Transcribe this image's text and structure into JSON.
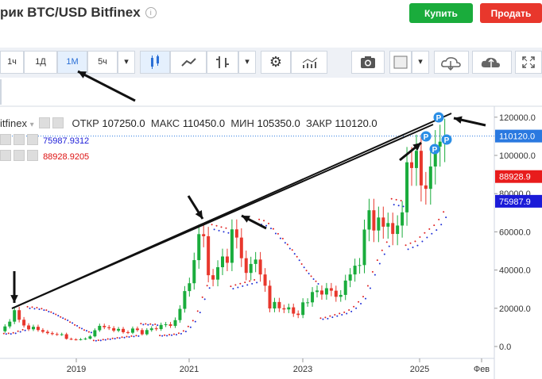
{
  "header": {
    "title": "рик BTC/USD Bitfinex",
    "info_icon": "info-icon",
    "buy_label": "Купить",
    "sell_label": "Продать"
  },
  "toolbar": {
    "intervals": [
      "1ч",
      "1Д",
      "1М",
      "5ч"
    ],
    "active_interval": "1М",
    "icons": [
      "chevron-down-icon",
      "candles-icon",
      "area-chart-icon",
      "bars-icon",
      "chevron-down-icon",
      "gear-icon",
      "indicators-icon",
      "camera-icon",
      "color-square-icon",
      "chevron-down-icon",
      "cloud-download-icon",
      "cloud-upload-icon",
      "fullscreen-icon"
    ]
  },
  "legend": {
    "symbol": "itfinex",
    "open_label": "ОТКР",
    "open_value": "107250.0",
    "high_label": "МАКС",
    "high_value": "110450.0",
    "low_label": "МИН",
    "low_value": "105350.0",
    "close_label": "ЗАКР",
    "close_value": "110120.0",
    "indicator1_value": "75987.9312",
    "indicator2_value": "88928.9205"
  },
  "colors": {
    "up": "#1aac3c",
    "down": "#e8372c",
    "sar_blue": "#1f2fd6",
    "sar_red": "#e02020",
    "price_tag": "#2a79e0",
    "low_tag": "#1b1bd8",
    "high_tag": "#e81c1c"
  },
  "chart_data": {
    "type": "candlestick",
    "x_tick_labels": [
      "2019",
      "2021",
      "2023",
      "2025",
      "Фев"
    ],
    "y_tick_labels": [
      "0.0",
      "20000.0",
      "40000.0",
      "60000.0",
      "80000.0",
      "100000.0",
      "120000.0"
    ],
    "ylim": [
      -8000,
      130000
    ],
    "price_tags": {
      "last": "110120.0",
      "indicator_red": "88928.9",
      "indicator_blue": "75987.9"
    },
    "markers": [
      "P",
      "P",
      "P",
      "P"
    ],
    "candles": [
      {
        "o": 8000,
        "c": 10500
      },
      {
        "o": 10500,
        "c": 13000
      },
      {
        "o": 13000,
        "c": 19000
      },
      {
        "o": 19000,
        "c": 14000
      },
      {
        "o": 14000,
        "c": 11000
      },
      {
        "o": 11000,
        "c": 9000
      },
      {
        "o": 9000,
        "c": 10300
      },
      {
        "o": 10300,
        "c": 8600
      },
      {
        "o": 8600,
        "c": 7700
      },
      {
        "o": 7700,
        "c": 7000
      },
      {
        "o": 7000,
        "c": 6500
      },
      {
        "o": 6500,
        "c": 6200
      },
      {
        "o": 6200,
        "c": 6400
      },
      {
        "o": 6400,
        "c": 4000
      },
      {
        "o": 4000,
        "c": 3700
      },
      {
        "o": 3700,
        "c": 3500
      },
      {
        "o": 3500,
        "c": 3800
      },
      {
        "o": 3800,
        "c": 4100
      },
      {
        "o": 4100,
        "c": 5300
      },
      {
        "o": 5300,
        "c": 8500
      },
      {
        "o": 8500,
        "c": 10800
      },
      {
        "o": 10800,
        "c": 10100
      },
      {
        "o": 10100,
        "c": 9600
      },
      {
        "o": 9600,
        "c": 8300
      },
      {
        "o": 8300,
        "c": 9200
      },
      {
        "o": 9200,
        "c": 7500
      },
      {
        "o": 7500,
        "c": 7200
      },
      {
        "o": 7200,
        "c": 9400
      },
      {
        "o": 9400,
        "c": 8600
      },
      {
        "o": 8600,
        "c": 6400
      },
      {
        "o": 6400,
        "c": 8600
      },
      {
        "o": 8600,
        "c": 9500
      },
      {
        "o": 9500,
        "c": 9100
      },
      {
        "o": 9100,
        "c": 11300
      },
      {
        "o": 11300,
        "c": 11600
      },
      {
        "o": 11600,
        "c": 10800
      },
      {
        "o": 10800,
        "c": 13800
      },
      {
        "o": 13800,
        "c": 19700
      },
      {
        "o": 19700,
        "c": 29000
      },
      {
        "o": 29000,
        "c": 33100
      },
      {
        "o": 33100,
        "c": 45200
      },
      {
        "o": 45200,
        "c": 58800
      },
      {
        "o": 58800,
        "c": 57700
      },
      {
        "o": 57700,
        "c": 37300
      },
      {
        "o": 37300,
        "c": 35000
      },
      {
        "o": 35000,
        "c": 41500
      },
      {
        "o": 41500,
        "c": 47100
      },
      {
        "o": 47100,
        "c": 43800
      },
      {
        "o": 43800,
        "c": 61300
      },
      {
        "o": 61300,
        "c": 57000
      },
      {
        "o": 57000,
        "c": 46200
      },
      {
        "o": 46200,
        "c": 38500
      },
      {
        "o": 38500,
        "c": 43200
      },
      {
        "o": 43200,
        "c": 45500
      },
      {
        "o": 45500,
        "c": 37700
      },
      {
        "o": 37700,
        "c": 31800
      },
      {
        "o": 31800,
        "c": 19900
      },
      {
        "o": 19900,
        "c": 23300
      },
      {
        "o": 23300,
        "c": 20000
      },
      {
        "o": 20000,
        "c": 19400
      },
      {
        "o": 19400,
        "c": 20500
      },
      {
        "o": 20500,
        "c": 17200
      },
      {
        "o": 17200,
        "c": 16500
      },
      {
        "o": 16500,
        "c": 23100
      },
      {
        "o": 23100,
        "c": 23100
      },
      {
        "o": 23100,
        "c": 28500
      },
      {
        "o": 28500,
        "c": 29300
      },
      {
        "o": 29300,
        "c": 27200
      },
      {
        "o": 27200,
        "c": 30500
      },
      {
        "o": 30500,
        "c": 29200
      },
      {
        "o": 29200,
        "c": 26000
      },
      {
        "o": 26000,
        "c": 27000
      },
      {
        "o": 27000,
        "c": 34500
      },
      {
        "o": 34500,
        "c": 37700
      },
      {
        "o": 37700,
        "c": 42300
      },
      {
        "o": 42300,
        "c": 42600
      },
      {
        "o": 42600,
        "c": 61200
      },
      {
        "o": 61200,
        "c": 71300
      },
      {
        "o": 71300,
        "c": 60700
      },
      {
        "o": 60700,
        "c": 67500
      },
      {
        "o": 67500,
        "c": 62700
      },
      {
        "o": 62700,
        "c": 64600
      },
      {
        "o": 64600,
        "c": 58900
      },
      {
        "o": 58900,
        "c": 63300
      },
      {
        "o": 63300,
        "c": 70200
      },
      {
        "o": 70200,
        "c": 96400
      },
      {
        "o": 96400,
        "c": 93400
      },
      {
        "o": 93400,
        "c": 102400
      },
      {
        "o": 102400,
        "c": 84300
      },
      {
        "o": 84300,
        "c": 82500
      },
      {
        "o": 82500,
        "c": 94200
      },
      {
        "o": 94200,
        "c": 104600
      },
      {
        "o": 104600,
        "c": 107200
      },
      {
        "o": 107200,
        "c": 110120
      }
    ]
  }
}
